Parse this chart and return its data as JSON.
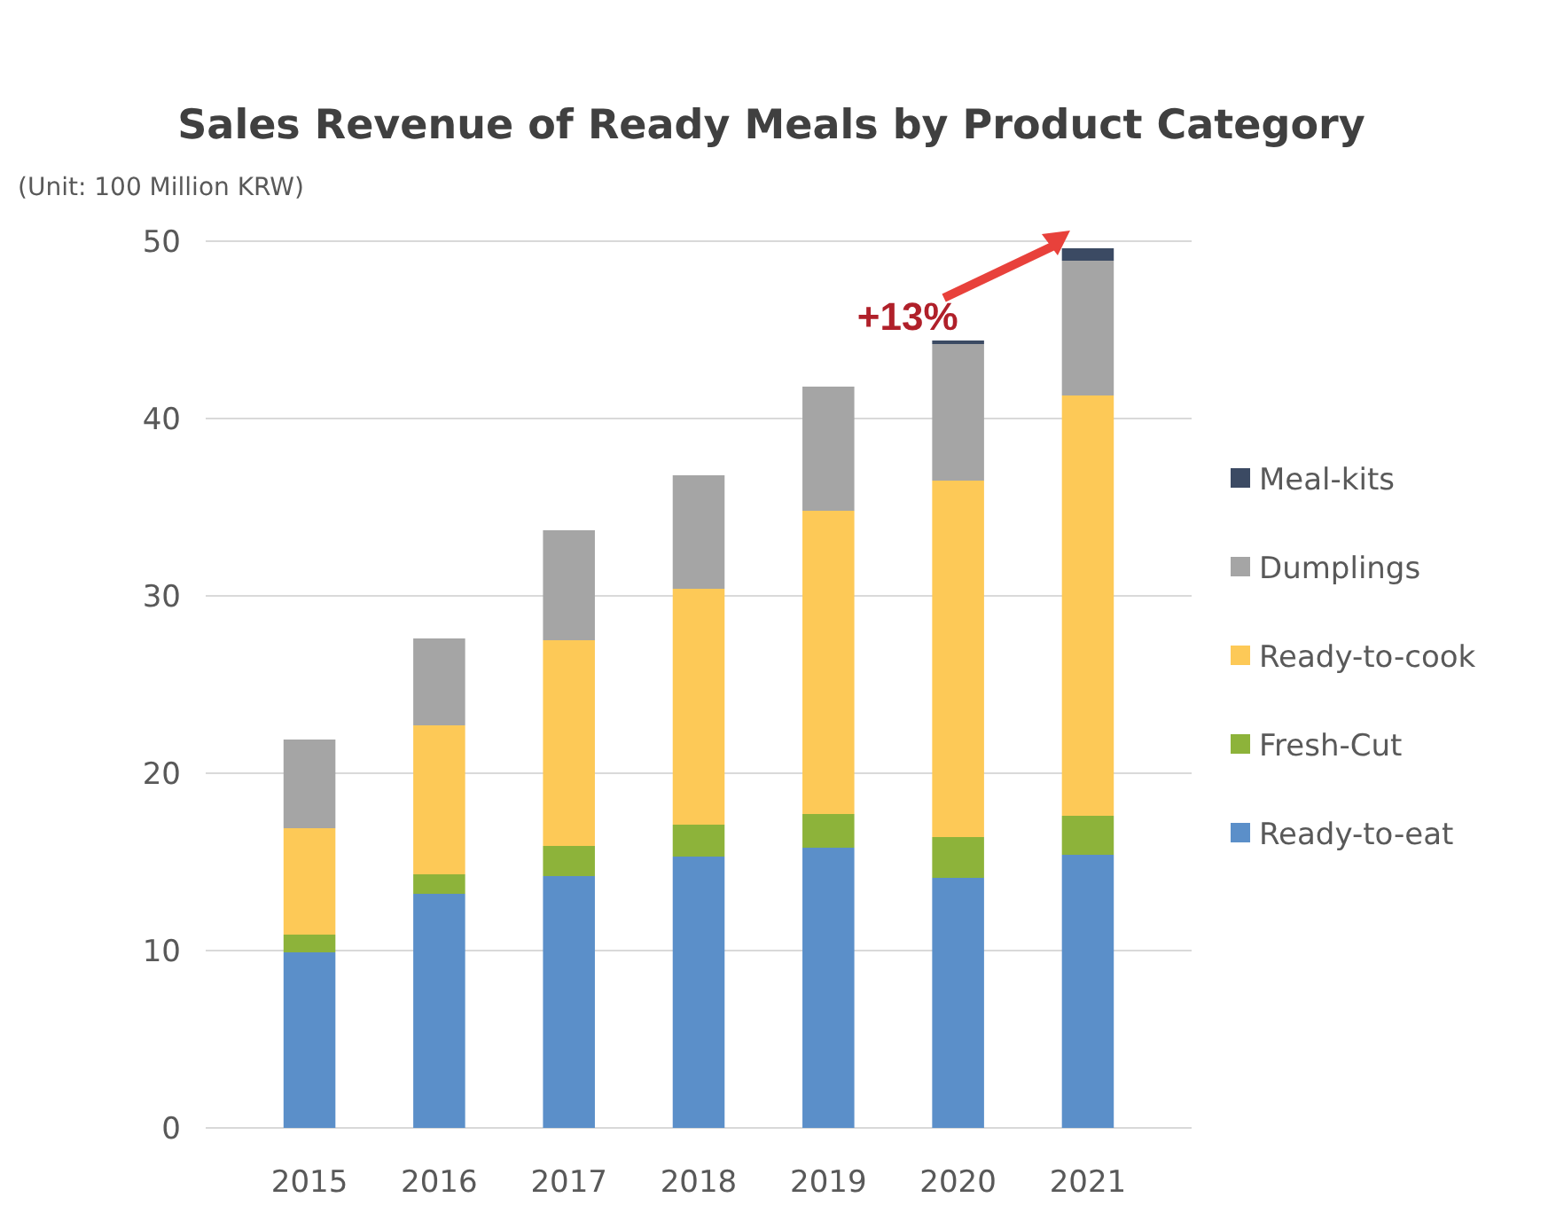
{
  "chart_data": {
    "type": "bar",
    "title": "Sales Revenue of Ready Meals by Product Category",
    "subtitle": "(Unit: 100 Million KRW)",
    "categories": [
      "2015",
      "2016",
      "2017",
      "2018",
      "2019",
      "2020",
      "2021"
    ],
    "stacked": true,
    "series": [
      {
        "name": "Ready-to-eat",
        "color": "#5b8fc9",
        "values": [
          9.9,
          13.2,
          14.2,
          15.3,
          15.8,
          14.1,
          15.4
        ]
      },
      {
        "name": "Fresh-Cut",
        "color": "#8db33a",
        "values": [
          1.0,
          1.1,
          1.7,
          1.8,
          1.9,
          2.3,
          2.2
        ]
      },
      {
        "name": "Ready-to-cook",
        "color": "#fdc957",
        "values": [
          6.0,
          8.4,
          11.6,
          13.3,
          17.1,
          20.1,
          23.7
        ]
      },
      {
        "name": "Dumplings",
        "color": "#a5a5a5",
        "values": [
          5.0,
          4.9,
          6.2,
          6.4,
          7.0,
          7.7,
          7.6
        ]
      },
      {
        "name": "Meal-kits",
        "color": "#3b4a63",
        "values": [
          0,
          0,
          0,
          0,
          0,
          0.2,
          0.7
        ]
      }
    ],
    "ylim": [
      0,
      50
    ],
    "yticks": [
      0,
      10,
      20,
      30,
      40,
      50
    ],
    "grid": "y",
    "legend": "right",
    "annotations": [
      {
        "text": "+13%",
        "x": "2020",
        "y": 44.4
      }
    ]
  }
}
